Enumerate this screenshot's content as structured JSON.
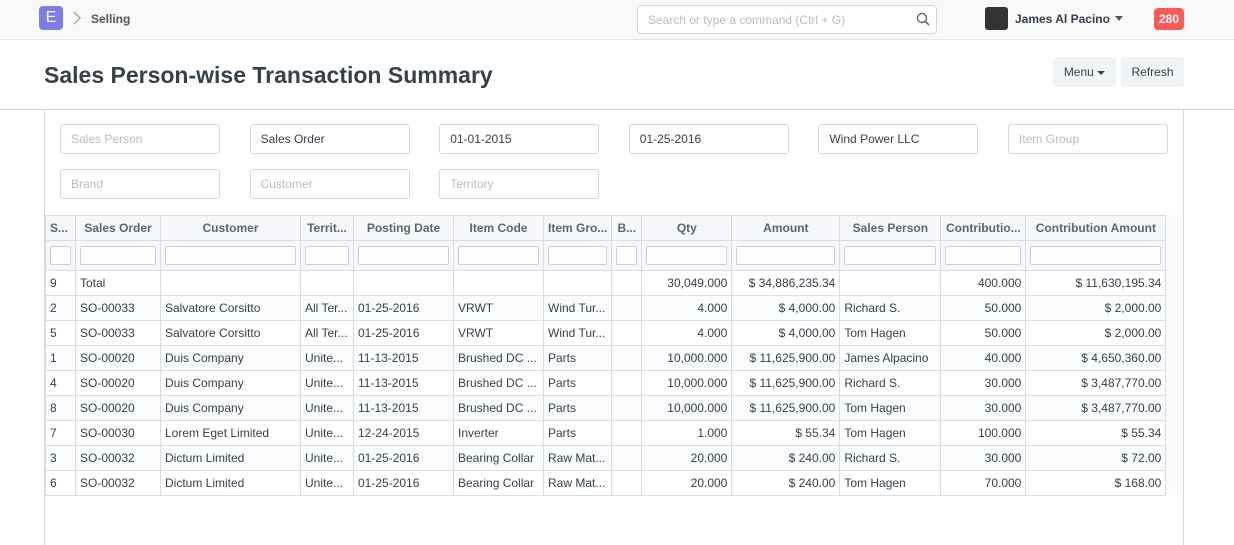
{
  "navbar": {
    "logo": "E",
    "breadcrumb": "Selling",
    "search_placeholder": "Search or type a command (Ctrl + G)",
    "user": "James Al Pacino",
    "notifications": "280"
  },
  "page": {
    "title": "Sales Person-wise Transaction Summary",
    "buttons": [
      "Menu",
      "Refresh"
    ]
  },
  "filters": [
    {
      "text": "Sales Person",
      "placeholder": true
    },
    {
      "text": "Sales Order",
      "placeholder": false
    },
    {
      "text": "01-01-2015",
      "placeholder": false
    },
    {
      "text": "01-25-2016",
      "placeholder": false
    },
    {
      "text": "Wind Power LLC",
      "placeholder": false
    },
    {
      "text": "Item Group",
      "placeholder": true
    },
    {
      "text": "Brand",
      "placeholder": true
    },
    {
      "text": "Customer",
      "placeholder": true
    },
    {
      "text": "Territory",
      "placeholder": true
    }
  ],
  "table": {
    "columns": [
      "S...",
      "Sales Order",
      "Customer",
      "Territ...",
      "Posting Date",
      "Item Code",
      "Item Gro...",
      "B...",
      "Qty",
      "Amount",
      "Sales Person",
      "Contributio...",
      "Contribution Amount"
    ],
    "rows": [
      [
        "9",
        "Total",
        null,
        null,
        null,
        null,
        null,
        null,
        "30,049.000",
        "$ 34,886,235.34",
        null,
        "400.000",
        "$ 11,630,195.34"
      ],
      [
        "2",
        "SO-00033",
        "Salvatore Corsitto",
        "All Ter...",
        "01-25-2016",
        "VRWT",
        "Wind Tur...",
        null,
        "4.000",
        "$ 4,000.00",
        "Richard S.",
        "50.000",
        "$ 2,000.00"
      ],
      [
        "5",
        "SO-00033",
        "Salvatore Corsitto",
        "All Ter...",
        "01-25-2016",
        "VRWT",
        "Wind Tur...",
        null,
        "4.000",
        "$ 4,000.00",
        "Tom Hagen",
        "50.000",
        "$ 2,000.00"
      ],
      [
        "1",
        "SO-00020",
        "Duis Company",
        "Unite...",
        "11-13-2015",
        "Brushed DC ...",
        "Parts",
        null,
        "10,000.000",
        "$ 11,625,900.00",
        "James Alpacino",
        "40.000",
        "$ 4,650,360.00"
      ],
      [
        "4",
        "SO-00020",
        "Duis Company",
        "Unite...",
        "11-13-2015",
        "Brushed DC ...",
        "Parts",
        null,
        "10,000.000",
        "$ 11,625,900.00",
        "Richard S.",
        "30.000",
        "$ 3,487,770.00"
      ],
      [
        "8",
        "SO-00020",
        "Duis Company",
        "Unite...",
        "11-13-2015",
        "Brushed DC ...",
        "Parts",
        null,
        "10,000.000",
        "$ 11,625,900.00",
        "Tom Hagen",
        "30.000",
        "$ 3,487,770.00"
      ],
      [
        "7",
        "SO-00030",
        "Lorem Eget Limited",
        "Unite...",
        "12-24-2015",
        "Inverter",
        "Parts",
        null,
        "1.000",
        "$ 55.34",
        "Tom Hagen",
        "100.000",
        "$ 55.34"
      ],
      [
        "3",
        "SO-00032",
        "Dictum Limited",
        "Unite...",
        "01-25-2016",
        "Bearing Collar",
        "Raw Mat...",
        null,
        "20.000",
        "$ 240.00",
        "Richard S.",
        "30.000",
        "$ 72.00"
      ],
      [
        "6",
        "SO-00032",
        "Dictum Limited",
        "Unite...",
        "01-25-2016",
        "Bearing Collar",
        "Raw Mat...",
        null,
        "20.000",
        "$ 240.00",
        "Tom Hagen",
        "70.000",
        "$ 168.00"
      ]
    ]
  }
}
